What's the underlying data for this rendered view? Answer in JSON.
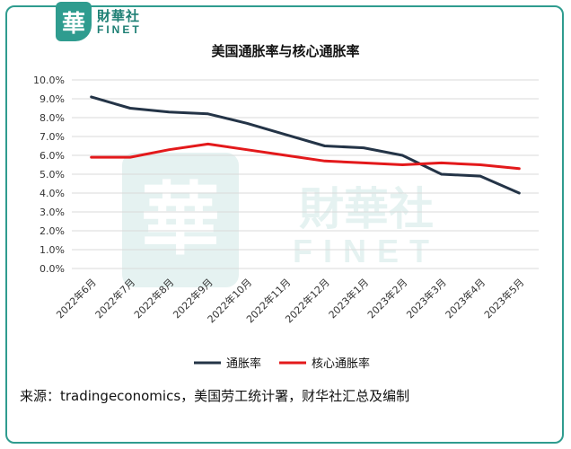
{
  "header": {
    "logo_glyph": "華",
    "logo_cn": "財華社",
    "logo_en": "FINET"
  },
  "footer": {
    "source": "来源：tradingeconomics，美国劳工统计署，财华社汇总及编制"
  },
  "colors": {
    "frame": "#2f9c8f",
    "cpi": "#243447",
    "core": "#e3191b"
  },
  "chart_data": {
    "type": "line",
    "title": "美国通胀率与核心通胀率",
    "categories": [
      "2022年6月",
      "2022年7月",
      "2022年8月",
      "2022年9月",
      "2022年10月",
      "2022年11月",
      "2022年12月",
      "2023年1月",
      "2023年2月",
      "2023年3月",
      "2023年4月",
      "2023年5月"
    ],
    "ylim": [
      0,
      10
    ],
    "yticks": [
      "0.0%",
      "1.0%",
      "2.0%",
      "3.0%",
      "4.0%",
      "5.0%",
      "6.0%",
      "7.0%",
      "8.0%",
      "9.0%",
      "10.0%"
    ],
    "grid": true,
    "legend": "bottom",
    "series": [
      {
        "name": "通胀率",
        "color": "#243447",
        "values": [
          9.1,
          8.5,
          8.3,
          8.2,
          7.7,
          7.1,
          6.5,
          6.4,
          6.0,
          5.0,
          4.9,
          4.0
        ]
      },
      {
        "name": "核心通胀率",
        "color": "#e3191b",
        "values": [
          5.9,
          5.9,
          6.3,
          6.6,
          6.3,
          6.0,
          5.7,
          5.6,
          5.5,
          5.6,
          5.5,
          5.3
        ]
      }
    ]
  }
}
